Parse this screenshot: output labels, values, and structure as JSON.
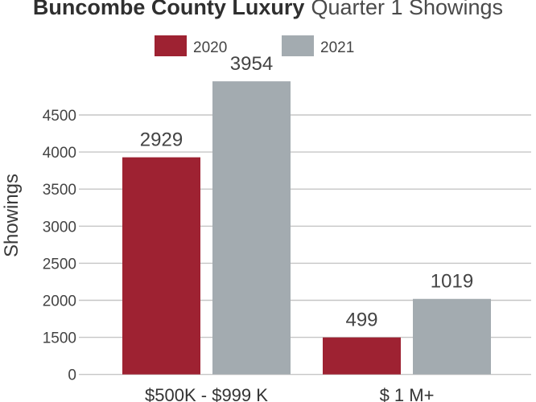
{
  "chart_data": {
    "type": "bar",
    "title_bold": "Buncombe County Luxury",
    "title_rest": "Quarter 1 Showings",
    "xlabel": "",
    "ylabel": "Showings",
    "categories": [
      "$500K - $999 K",
      "$ 1 M+"
    ],
    "series": [
      {
        "name": "2020",
        "color": "#9e2232",
        "values": [
          2929,
          499
        ]
      },
      {
        "name": "2021",
        "color": "#a3abb0",
        "values": [
          3954,
          1019
        ]
      }
    ],
    "y_ticks": [
      "0",
      "1500",
      "2000",
      "2500",
      "3000",
      "3500",
      "4000",
      "4500"
    ],
    "ylim": [
      0,
      4500
    ],
    "grid": true,
    "legend_position": "top-center",
    "gridline_color": "#c6c6c6"
  }
}
